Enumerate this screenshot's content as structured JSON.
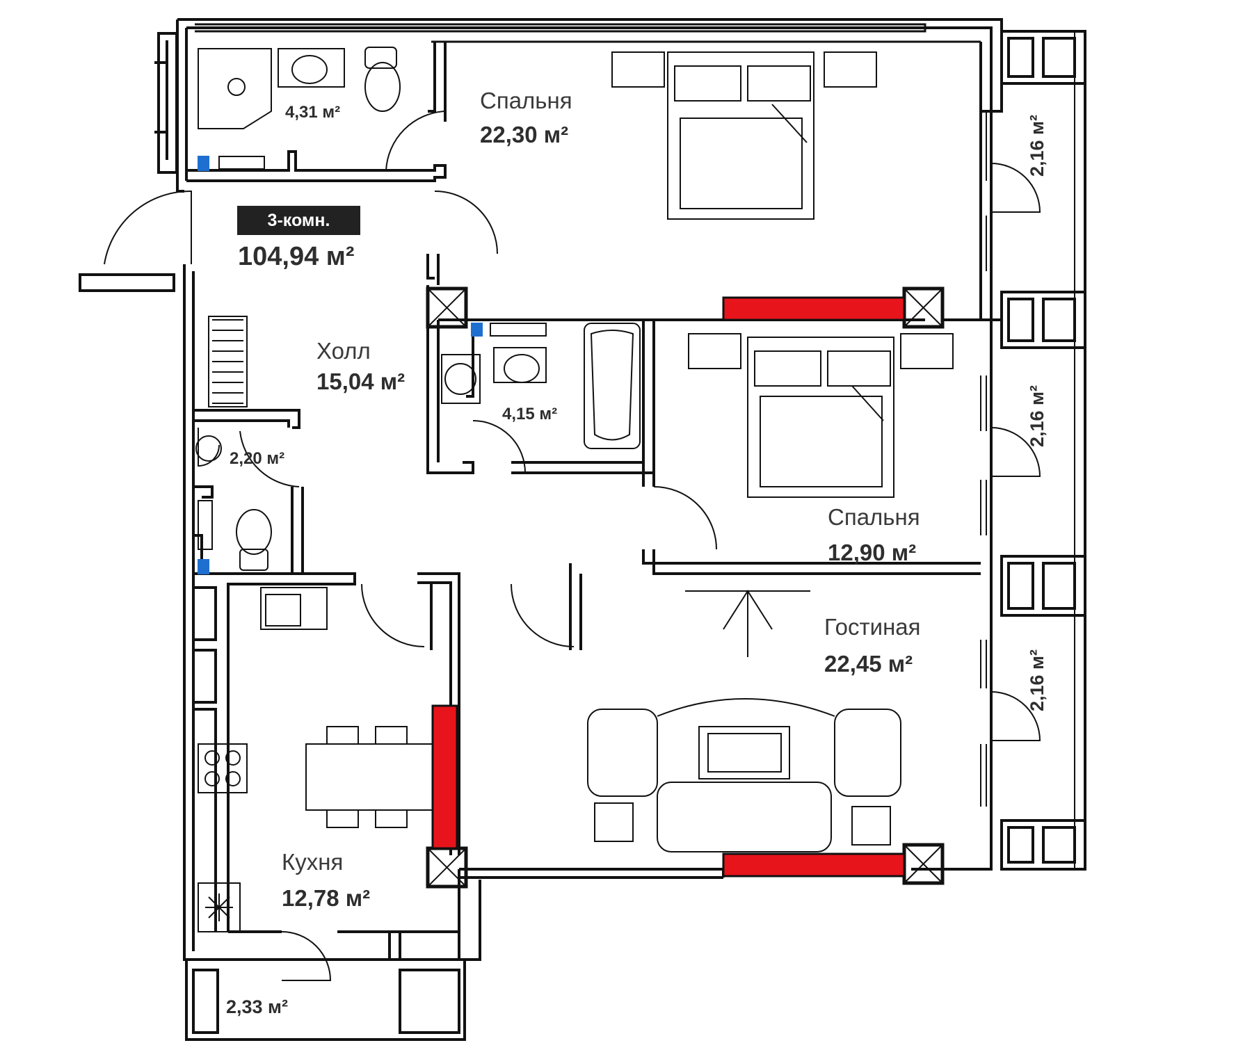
{
  "apartment": {
    "type_badge": "3-комн.",
    "total_area": "104,94 м²"
  },
  "rooms": {
    "bedroom_1": {
      "name": "Спальня",
      "area": "22,30 м²"
    },
    "bedroom_2": {
      "name": "Спальня",
      "area": "12,90 м²"
    },
    "hall": {
      "name": "Холл",
      "area": "15,04 м²"
    },
    "living": {
      "name": "Гостиная",
      "area": "22,45 м²"
    },
    "kitchen": {
      "name": "Кухня",
      "area": "12,78 м²"
    },
    "bathroom_1": {
      "area": "4,31 м²"
    },
    "bathroom_2": {
      "area": "4,15 м²"
    },
    "wc": {
      "area": "2,20 м²"
    },
    "balcony_bottom": {
      "area": "2,33 м²"
    }
  },
  "balconies": [
    {
      "area": "2,16 м²"
    },
    {
      "area": "2,16 м²"
    },
    {
      "area": "2,16 м²"
    }
  ],
  "colors": {
    "wall": "#111111",
    "highlight_wall": "#e8141c",
    "line": "#222222"
  }
}
